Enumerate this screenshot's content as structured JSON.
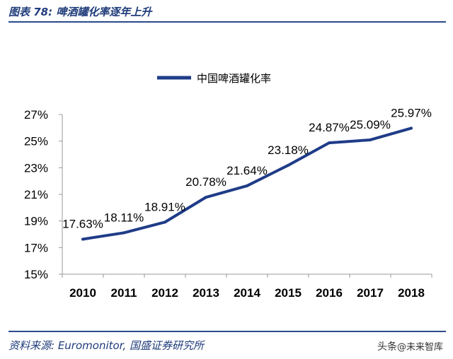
{
  "header": {
    "title": "图表 78:  啤酒罐化率逐年上升"
  },
  "footer": {
    "source": "资料来源:  Euromonitor,  国盛证券研究所",
    "watermark_prefix": "头条",
    "watermark_handle": "@未来智库"
  },
  "colors": {
    "series": "#1f3c88",
    "accent": "#1f3c7a",
    "axis": "#999999"
  },
  "chart_data": {
    "type": "line",
    "title": "",
    "xlabel": "",
    "ylabel": "",
    "categories": [
      "2010",
      "2011",
      "2012",
      "2013",
      "2014",
      "2015",
      "2016",
      "2017",
      "2018"
    ],
    "series": [
      {
        "name": "中国啤酒罐化率",
        "values": [
          17.63,
          18.11,
          18.91,
          20.78,
          21.64,
          23.18,
          24.87,
          25.09,
          25.97
        ],
        "labels": [
          "17.63%",
          "18.11%",
          "18.91%",
          "20.78%",
          "21.64%",
          "23.18%",
          "24.87%",
          "25.09%",
          "25.97%"
        ]
      }
    ],
    "ylim": [
      15,
      27
    ],
    "yticks": [
      15,
      17,
      19,
      21,
      23,
      25,
      27
    ],
    "ytick_labels": [
      "15%",
      "17%",
      "19%",
      "21%",
      "23%",
      "25%",
      "27%"
    ],
    "grid": false,
    "legend_position": "top-center"
  }
}
